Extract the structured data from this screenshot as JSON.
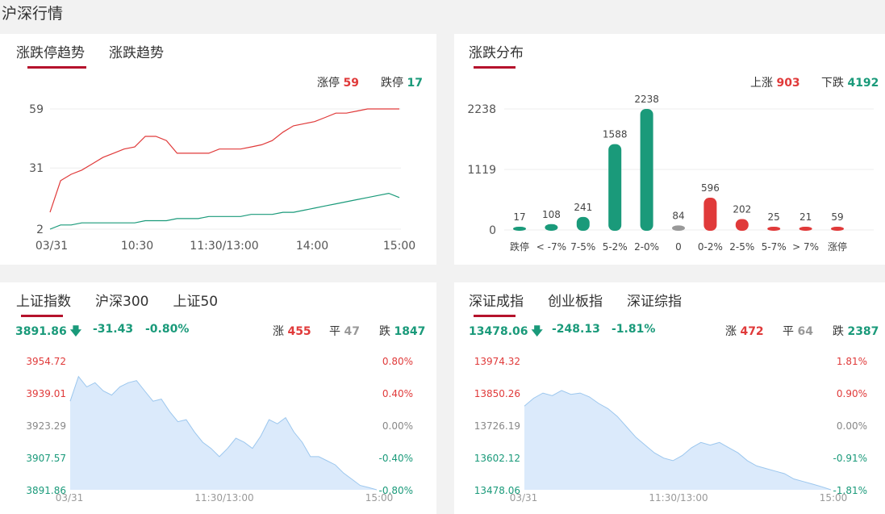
{
  "page": {
    "title": "沪深行情"
  },
  "limit_panel": {
    "tabs": [
      "涨跌停趋势",
      "涨跌趋势"
    ],
    "limit_up_label": "涨停",
    "limit_up_value": "59",
    "limit_down_label": "跌停",
    "limit_down_value": "17",
    "y_ticks": [
      "59",
      "31",
      "2"
    ],
    "x_ticks": [
      "03/31",
      "10:30",
      "11:30/13:00",
      "14:00",
      "15:00"
    ]
  },
  "dist_panel": {
    "tabs": [
      "涨跌分布"
    ],
    "up_label": "上涨",
    "up_value": "903",
    "down_label": "下跌",
    "down_value": "4192",
    "y_ticks": [
      "2238",
      "1119",
      "0"
    ]
  },
  "sh_panel": {
    "tabs": [
      "上证指数",
      "沪深300",
      "上证50"
    ],
    "price": "3891.86",
    "change": "-31.43",
    "pct": "-0.80%",
    "up_label": "涨",
    "up_value": "455",
    "flat_label": "平",
    "flat_value": "47",
    "down_label": "跌",
    "down_value": "1847",
    "left_ticks": [
      "3954.72",
      "3939.01",
      "3923.29",
      "3907.57",
      "3891.86"
    ],
    "right_ticks": [
      "0.80%",
      "0.40%",
      "0.00%",
      "-0.40%",
      "-0.80%"
    ],
    "x_ticks": [
      "03/31",
      "11:30/13:00",
      "15:00"
    ]
  },
  "sz_panel": {
    "tabs": [
      "深证成指",
      "创业板指",
      "深证综指"
    ],
    "price": "13478.06",
    "change": "-248.13",
    "pct": "-1.81%",
    "up_label": "涨",
    "up_value": "472",
    "flat_label": "平",
    "flat_value": "64",
    "down_label": "跌",
    "down_value": "2387",
    "left_ticks": [
      "13974.32",
      "13850.26",
      "13726.19",
      "13602.12",
      "13478.06"
    ],
    "right_ticks": [
      "1.81%",
      "0.90%",
      "0.00%",
      "-0.91%",
      "-1.81%"
    ],
    "x_ticks": [
      "03/31",
      "11:30/13:00",
      "15:00"
    ]
  },
  "colors": {
    "up": "#e03a3a",
    "down": "#1a9a7a",
    "flat": "#999999",
    "area": "#dbeafb",
    "area_line": "#9cc7ee",
    "accent": "#b5122c"
  },
  "chart_data": [
    {
      "type": "line",
      "series": [
        {
          "name": "涨停",
          "values": [
            10,
            25,
            28,
            30,
            33,
            36,
            38,
            40,
            41,
            46,
            46,
            44,
            38,
            38,
            38,
            38,
            40,
            40,
            40,
            41,
            42,
            44,
            48,
            51,
            52,
            53,
            55,
            57,
            57,
            58,
            59,
            59,
            59,
            59
          ]
        },
        {
          "name": "跌停",
          "values": [
            2,
            4,
            4,
            5,
            5,
            5,
            5,
            5,
            5,
            6,
            6,
            6,
            7,
            7,
            7,
            8,
            8,
            8,
            8,
            9,
            9,
            9,
            10,
            10,
            11,
            12,
            13,
            14,
            15,
            16,
            17,
            18,
            19,
            17
          ]
        }
      ],
      "ylim": [
        2,
        59
      ]
    },
    {
      "type": "bar",
      "categories": [
        "跌停",
        "< -7%",
        "7-5%",
        "5-2%",
        "2-0%",
        "0",
        "0-2%",
        "2-5%",
        "5-7%",
        "> 7%",
        "涨停"
      ],
      "values": [
        17,
        108,
        241,
        1588,
        2238,
        84,
        596,
        202,
        25,
        21,
        59
      ],
      "ylim": [
        0,
        2238
      ]
    },
    {
      "type": "area",
      "values": [
        3935,
        3947,
        3942,
        3944,
        3940,
        3938,
        3942,
        3944,
        3945,
        3940,
        3935,
        3936,
        3930,
        3925,
        3926,
        3920,
        3915,
        3912,
        3908,
        3912,
        3917,
        3915,
        3912,
        3918,
        3926,
        3924,
        3927,
        3920,
        3915,
        3908,
        3908,
        3906,
        3904,
        3900,
        3897,
        3894,
        3893,
        3891.86
      ],
      "ylim": [
        3891.86,
        3954.72
      ]
    },
    {
      "type": "area",
      "values": [
        13800,
        13830,
        13850,
        13840,
        13860,
        13845,
        13850,
        13835,
        13810,
        13790,
        13760,
        13720,
        13680,
        13650,
        13620,
        13600,
        13590,
        13610,
        13640,
        13660,
        13650,
        13660,
        13640,
        13620,
        13590,
        13570,
        13560,
        13550,
        13540,
        13520,
        13510,
        13500,
        13490,
        13478.06
      ],
      "ylim": [
        13478.06,
        13974.32
      ]
    }
  ]
}
